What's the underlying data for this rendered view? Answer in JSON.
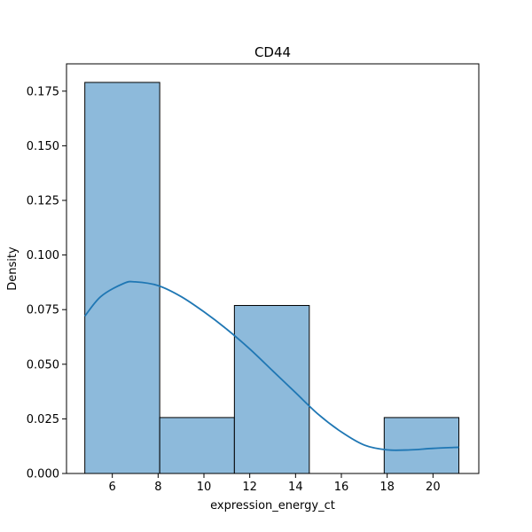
{
  "chart_data": {
    "type": "bar",
    "title": "CD44",
    "xlabel": "expression_energy_ct",
    "ylabel": "Density",
    "xlim": [
      4.0,
      22.0
    ],
    "ylim": [
      0.0,
      0.1875
    ],
    "xticks": [
      6,
      8,
      10,
      12,
      14,
      16,
      18,
      20
    ],
    "xtick_labels": [
      "6",
      "8",
      "10",
      "12",
      "14",
      "16",
      "18",
      "20"
    ],
    "yticks": [
      0.0,
      0.025,
      0.05,
      0.075,
      0.1,
      0.125,
      0.15,
      0.175
    ],
    "ytick_labels": [
      "0.000",
      "0.025",
      "0.050",
      "0.075",
      "0.100",
      "0.125",
      "0.150",
      "0.175"
    ],
    "bins": [
      {
        "x0": 4.8,
        "x1": 8.07,
        "density": 0.179
      },
      {
        "x0": 8.07,
        "x1": 11.33,
        "density": 0.0256
      },
      {
        "x0": 11.33,
        "x1": 14.6,
        "density": 0.0769
      },
      {
        "x0": 14.6,
        "x1": 17.87,
        "density": 0.0
      },
      {
        "x0": 17.87,
        "x1": 21.13,
        "density": 0.0256
      }
    ],
    "kde": {
      "x": [
        4.8,
        5.5,
        6.5,
        7.0,
        8.0,
        9.0,
        10.0,
        11.0,
        12.0,
        13.0,
        14.0,
        15.0,
        16.0,
        17.0,
        18.0,
        19.0,
        20.0,
        21.13
      ],
      "y": [
        0.072,
        0.081,
        0.087,
        0.0877,
        0.086,
        0.081,
        0.074,
        0.066,
        0.057,
        0.047,
        0.037,
        0.027,
        0.019,
        0.013,
        0.0108,
        0.0108,
        0.0115,
        0.012
      ]
    },
    "colors": {
      "bar_fill": "#8dbadb",
      "bar_edge": "#000000",
      "kde_line": "#1f77b4"
    },
    "grid": false,
    "legend": "none"
  }
}
